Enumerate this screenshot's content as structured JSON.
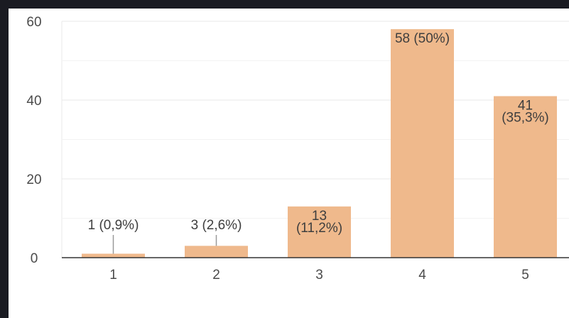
{
  "chart_data": {
    "type": "bar",
    "title": "",
    "xlabel": "",
    "ylabel": "",
    "ylim": [
      0,
      60
    ],
    "yticks": [
      0,
      20,
      40,
      60
    ],
    "grid": true,
    "categories": [
      "1",
      "2",
      "3",
      "4",
      "5"
    ],
    "values": [
      1,
      3,
      13,
      58,
      41
    ],
    "labels": [
      [
        "1 (0,9%)"
      ],
      [
        "3 (2,6%)"
      ],
      [
        "13",
        "(11,2%)"
      ],
      [
        "58 (50%)"
      ],
      [
        "41",
        "(35,3%)"
      ]
    ],
    "bar_color": "#efb98c",
    "leader_color": "#9a9a9a",
    "grid_color": "#e8e8e8",
    "axis_color": "#333333"
  }
}
